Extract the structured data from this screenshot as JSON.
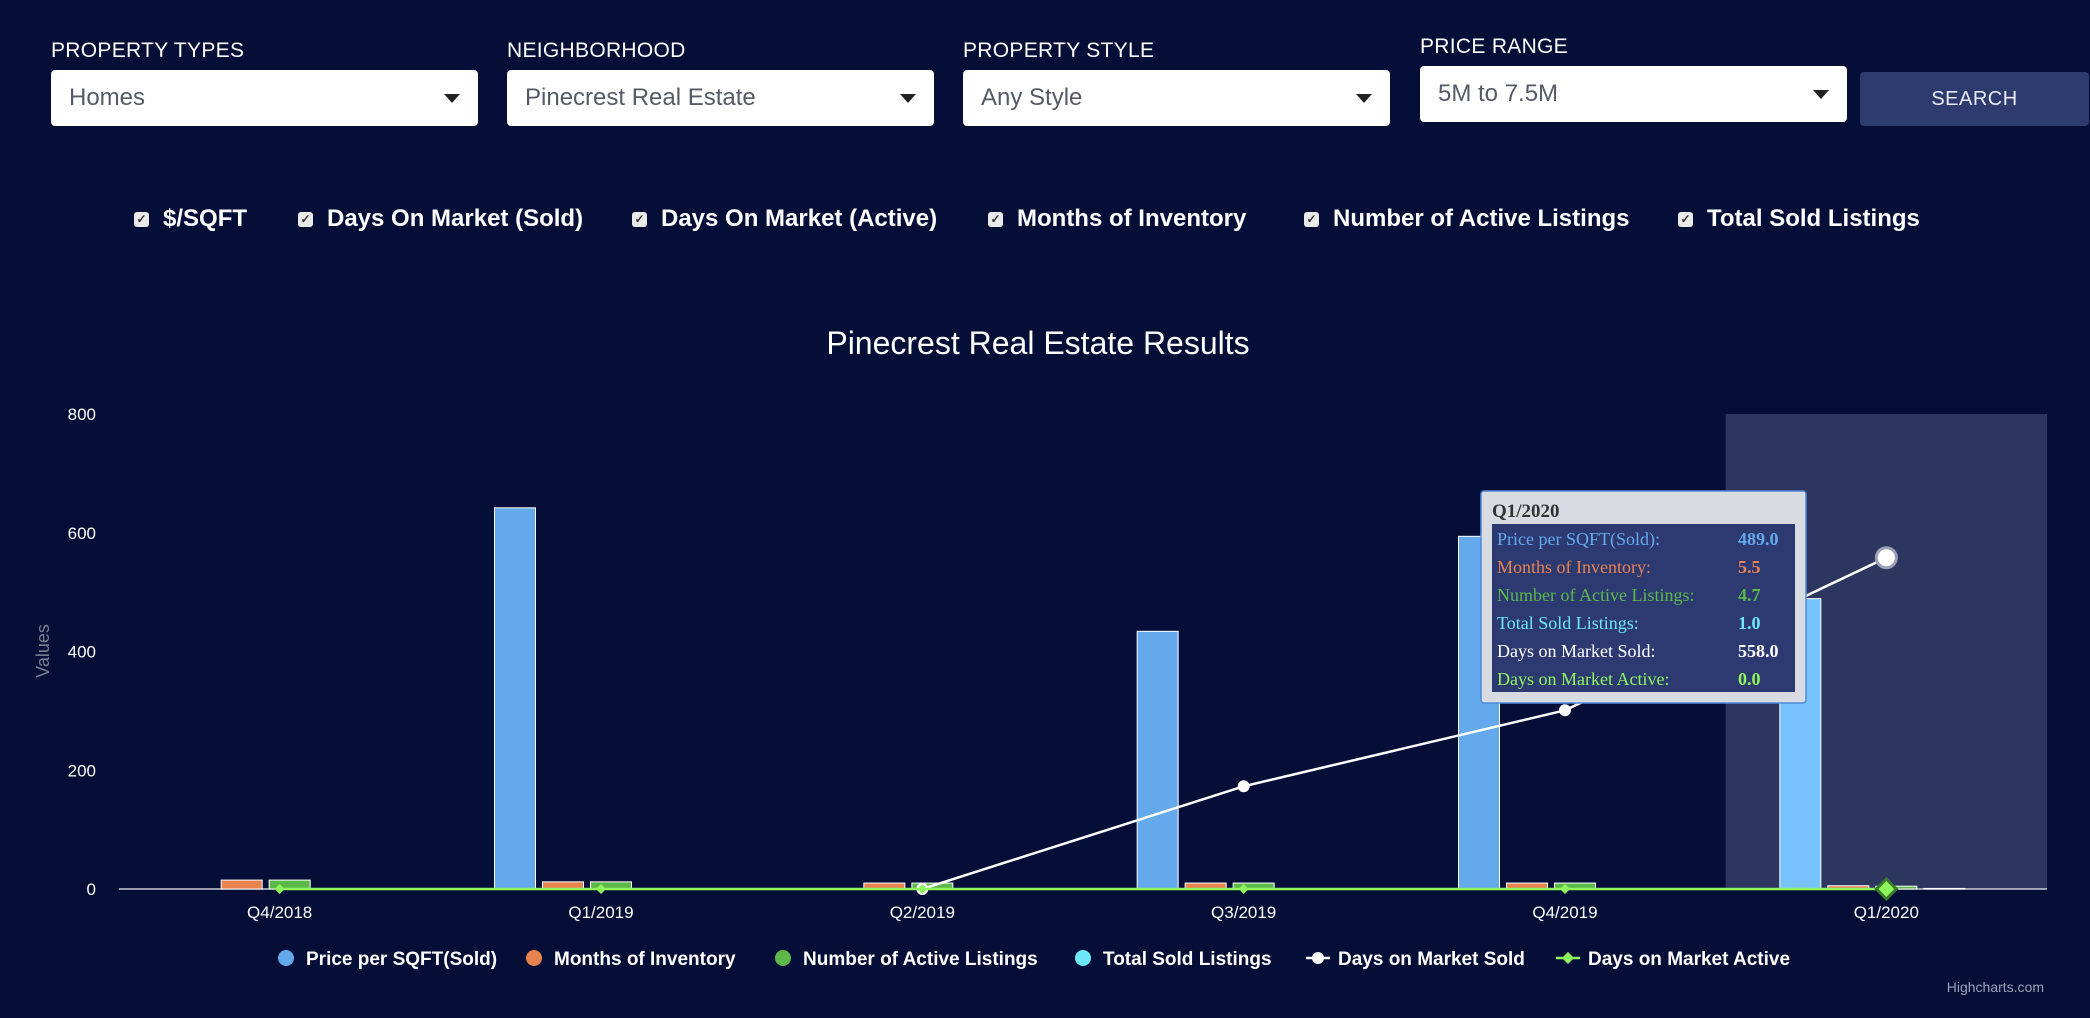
{
  "filters": [
    {
      "label": "PROPERTY TYPES",
      "value": "Homes"
    },
    {
      "label": "NEIGHBORHOOD",
      "value": "Pinecrest Real Estate"
    },
    {
      "label": "PROPERTY STYLE",
      "value": "Any Style"
    },
    {
      "label": "PRICE RANGE",
      "value": "5M to 7.5M"
    }
  ],
  "search_label": "SEARCH",
  "toggles": [
    {
      "label": "$/SQFT",
      "checked": true
    },
    {
      "label": "Days On Market (Sold)",
      "checked": true
    },
    {
      "label": "Days On Market (Active)",
      "checked": true
    },
    {
      "label": "Months of Inventory",
      "checked": true
    },
    {
      "label": "Number of Active Listings",
      "checked": true
    },
    {
      "label": "Total Sold Listings",
      "checked": true
    }
  ],
  "colors": {
    "background": "#040e37",
    "price": "#63a9ec",
    "price_highlight": "#77c3ff",
    "months": "#e8834e",
    "active_listings": "#5cb848",
    "sold_listings": "#6ee7f8",
    "dom_sold": "#ffffff",
    "dom_active": "#8ff55c"
  },
  "chart_data": {
    "type": "bar",
    "title": "Pinecrest Real Estate Results",
    "ylabel": "Values",
    "ylim": [
      0,
      800
    ],
    "yticks": [
      0,
      200,
      400,
      600,
      800
    ],
    "categories": [
      "Q4/2018",
      "Q1/2019",
      "Q2/2019",
      "Q3/2019",
      "Q4/2019",
      "Q1/2020"
    ],
    "highlighted_category": "Q1/2020",
    "series": [
      {
        "name": "Price per SQFT(Sold)",
        "type": "bar",
        "values": [
          0,
          642,
          0,
          434,
          594,
          489
        ]
      },
      {
        "name": "Months of Inventory",
        "type": "bar",
        "values": [
          15,
          12,
          10,
          10,
          10,
          5.5
        ]
      },
      {
        "name": "Number of Active Listings",
        "type": "bar",
        "values": [
          15,
          12,
          10,
          10,
          10,
          4.7
        ]
      },
      {
        "name": "Total Sold Listings",
        "type": "bar",
        "values": [
          0,
          0,
          0,
          0,
          0,
          1.0
        ]
      },
      {
        "name": "Days on Market Sold",
        "type": "line",
        "values": [
          0,
          0,
          0,
          173,
          301,
          558
        ]
      },
      {
        "name": "Days on Market Active",
        "type": "line",
        "values": [
          0,
          0,
          0,
          0,
          0,
          0
        ]
      }
    ],
    "legend_position": "bottom",
    "tooltip": {
      "header": "Q1/2020",
      "rows": [
        {
          "label": "Price per SQFT(Sold):",
          "value": "489.0"
        },
        {
          "label": "Months of Inventory:",
          "value": "5.5"
        },
        {
          "label": "Number of Active Listings:",
          "value": "4.7"
        },
        {
          "label": "Total Sold Listings:",
          "value": "1.0"
        },
        {
          "label": "Days on Market Sold:",
          "value": "558.0"
        },
        {
          "label": "Days on Market Active:",
          "value": "0.0"
        }
      ]
    },
    "credit": "Highcharts.com"
  }
}
